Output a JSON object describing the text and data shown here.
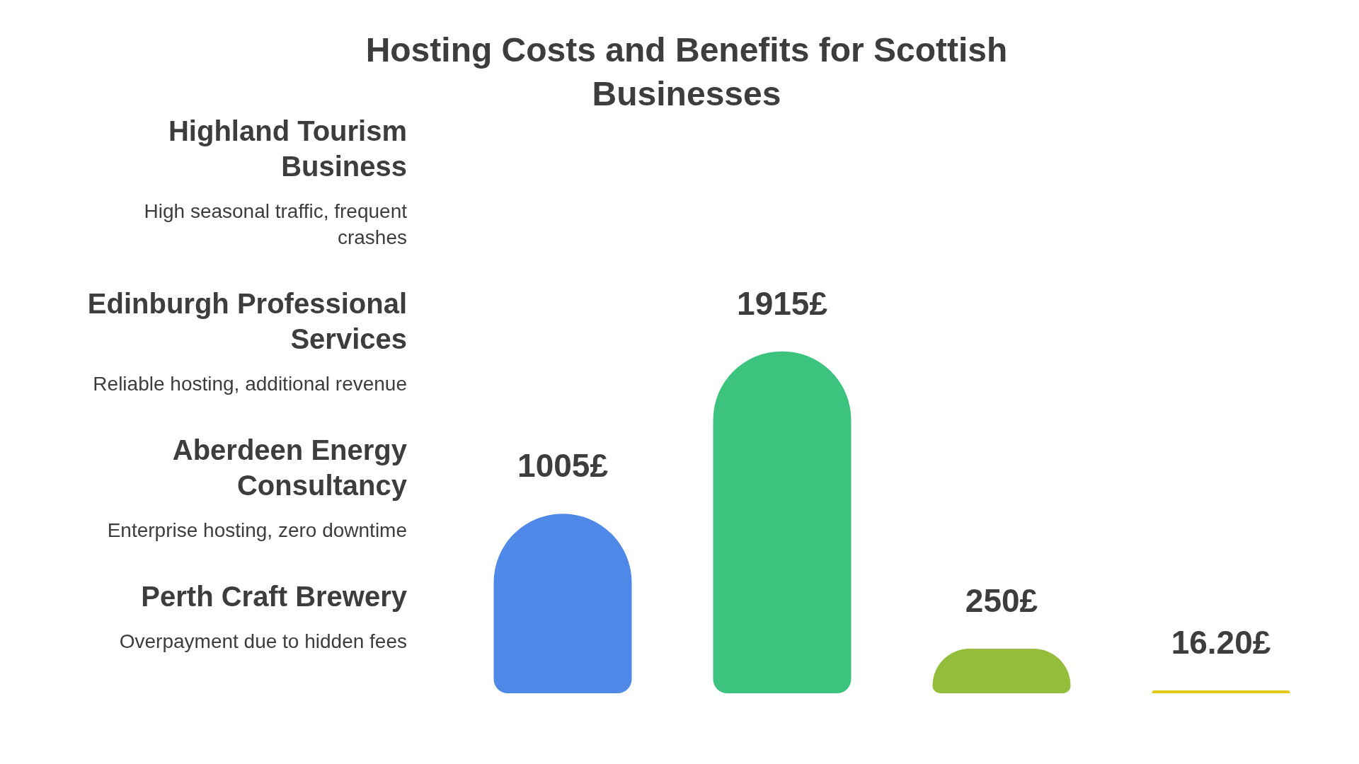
{
  "chart_data": {
    "type": "bar",
    "title": "Hosting Costs and Benefits for Scottish Businesses",
    "categories": [
      null,
      null,
      null,
      null
    ],
    "values": [
      1005,
      1915,
      250,
      16.2
    ],
    "colors": [
      "#4f88e6",
      "#3cc47f",
      "#93bd3a",
      "#e0c919"
    ],
    "value_labels": [
      "1005£",
      "1915£",
      "250£",
      "16.20£"
    ],
    "annotations": [
      "Highland Tourism Business",
      "High seasonal traffic, frequent crashes",
      "Edinburgh Professional Services",
      "Reliable hosting, additional revenue",
      "Aberdeen Energy Consultancy",
      "Enterprise hosting, zero downtime",
      "Perth Craft Brewery",
      "Overpayment due to hidden fees"
    ]
  }
}
